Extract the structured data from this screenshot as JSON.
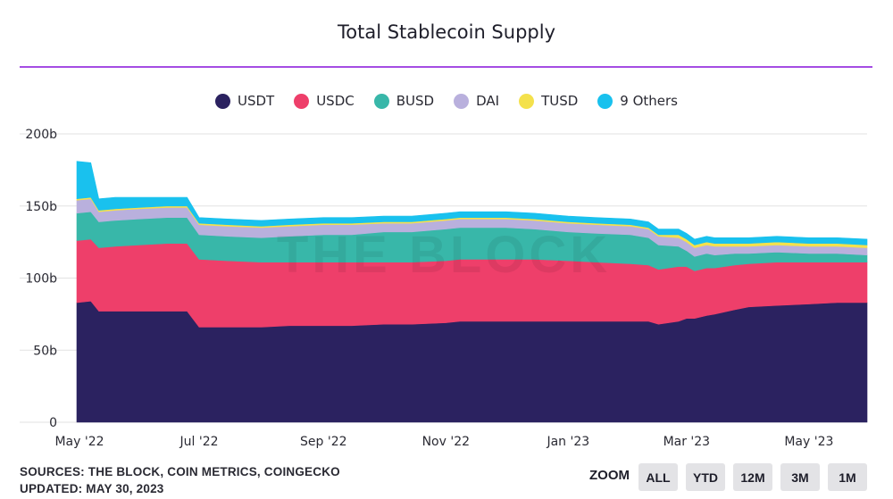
{
  "chart_data": {
    "type": "area",
    "stacked": true,
    "title": "Total Stablecoin Supply",
    "watermark": "THE BLOCK",
    "y_ticks": [
      "0",
      "50b",
      "100b",
      "150b",
      "200b"
    ],
    "ylim": [
      0,
      200
    ],
    "x_ticks": [
      "May '22",
      "Jul '22",
      "Sep '22",
      "Nov '22",
      "Jan '23",
      "Mar '23",
      "May '23"
    ],
    "x": [
      "2022-05-01",
      "2022-05-08",
      "2022-05-12",
      "2022-05-20",
      "2022-06-01",
      "2022-06-15",
      "2022-06-25",
      "2022-07-01",
      "2022-07-15",
      "2022-08-01",
      "2022-08-15",
      "2022-09-01",
      "2022-09-15",
      "2022-10-01",
      "2022-10-15",
      "2022-11-01",
      "2022-11-08",
      "2022-11-15",
      "2022-12-01",
      "2022-12-15",
      "2023-01-01",
      "2023-01-15",
      "2023-02-01",
      "2023-02-10",
      "2023-02-15",
      "2023-02-25",
      "2023-03-01",
      "2023-03-05",
      "2023-03-11",
      "2023-03-15",
      "2023-03-25",
      "2023-04-01",
      "2023-04-15",
      "2023-05-01",
      "2023-05-15",
      "2023-05-30"
    ],
    "series": [
      {
        "name": "USDT",
        "color": "#2b2260",
        "values": [
          83,
          84,
          77,
          77,
          77,
          77,
          77,
          66,
          66,
          66,
          67,
          67,
          67,
          68,
          68,
          69,
          70,
          70,
          70,
          70,
          70,
          70,
          70,
          70,
          68,
          70,
          72,
          72,
          74,
          75,
          78,
          80,
          81,
          82,
          83,
          83
        ]
      },
      {
        "name": "USDC",
        "color": "#ee3f6a",
        "values": [
          43,
          43,
          44,
          45,
          46,
          47,
          47,
          47,
          46,
          45,
          44,
          44,
          44,
          43,
          43,
          43,
          43,
          43,
          43,
          43,
          42,
          41,
          40,
          39,
          38,
          38,
          36,
          33,
          33,
          32,
          31,
          30,
          30,
          29,
          28,
          28
        ]
      },
      {
        "name": "BUSD",
        "color": "#38b7a9",
        "values": [
          19,
          19,
          18,
          18,
          18,
          18,
          18,
          17,
          17,
          17,
          18,
          19,
          19,
          21,
          21,
          22,
          22,
          22,
          22,
          21,
          20,
          20,
          20,
          19,
          17,
          14,
          11,
          10,
          10,
          9,
          8,
          7,
          7,
          6,
          6,
          5
        ]
      },
      {
        "name": "DAI",
        "color": "#b9b0dd",
        "values": [
          9,
          9,
          7,
          7,
          7,
          7,
          7,
          7,
          7,
          7,
          7,
          7,
          7,
          6,
          6,
          6,
          6,
          6,
          6,
          6,
          6,
          6,
          6,
          6,
          6,
          6,
          6,
          6,
          6,
          6,
          5,
          5,
          5,
          5,
          5,
          5
        ]
      },
      {
        "name": "TUSD",
        "color": "#f4e14c",
        "values": [
          1,
          1,
          1,
          1,
          1,
          1,
          1,
          1,
          1,
          1,
          1,
          1,
          1,
          1,
          1,
          1,
          1,
          1,
          1,
          1,
          1,
          1,
          1,
          1,
          1,
          2,
          2,
          2,
          2,
          2,
          2,
          2,
          2,
          2,
          2,
          2
        ]
      },
      {
        "name": "9 Others",
        "color": "#19c1ee",
        "values": [
          26,
          24,
          8,
          8,
          7,
          6,
          6,
          4,
          4,
          4,
          4,
          4,
          4,
          4,
          4,
          4,
          4,
          4,
          4,
          4,
          4,
          4,
          4,
          4,
          4,
          4,
          4,
          4,
          4,
          4,
          4,
          4,
          4,
          4,
          4,
          4
        ]
      }
    ]
  },
  "footer": {
    "sources": "SOURCES: THE BLOCK, COIN METRICS, COINGECKO",
    "updated": "UPDATED: MAY 30, 2023"
  },
  "zoom": {
    "label": "ZOOM",
    "buttons": [
      "ALL",
      "YTD",
      "12M",
      "3M",
      "1M"
    ]
  }
}
